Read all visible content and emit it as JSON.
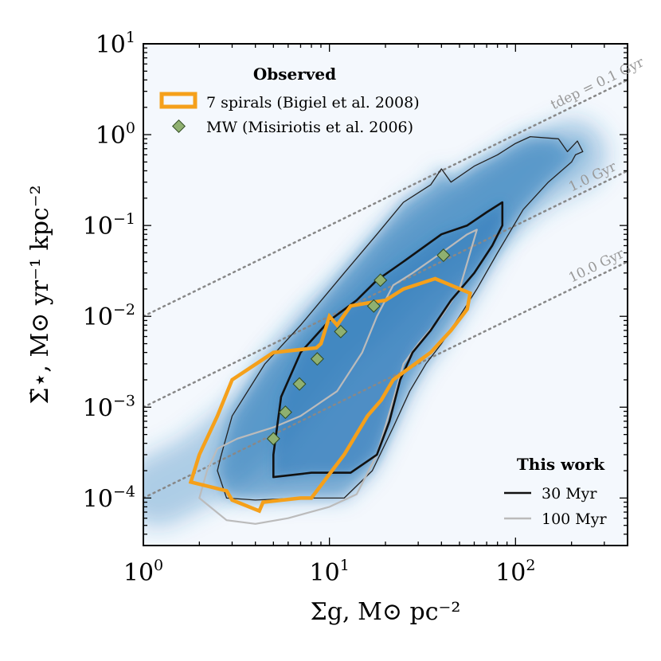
{
  "chart_data": {
    "type": "scatter",
    "xlabel": "Σg, M⊙ pc⁻²",
    "ylabel": "Σ̇⋆, M⊙ yr⁻¹ kpc⁻²",
    "x_scale": "log",
    "y_scale": "log",
    "xlim": [
      1,
      400
    ],
    "ylim": [
      3e-05,
      10
    ],
    "x_ticks": [
      {
        "value": 1,
        "base": "10",
        "exp": "0"
      },
      {
        "value": 10,
        "base": "10",
        "exp": "1"
      },
      {
        "value": 100,
        "base": "10",
        "exp": "2"
      }
    ],
    "y_ticks": [
      {
        "value": 0.0001,
        "base": "10",
        "exp": "−4"
      },
      {
        "value": 0.001,
        "base": "10",
        "exp": "−3"
      },
      {
        "value": 0.01,
        "base": "10",
        "exp": "−2"
      },
      {
        "value": 0.1,
        "base": "10",
        "exp": "−1"
      },
      {
        "value": 1,
        "base": "10",
        "exp": "0"
      },
      {
        "value": 10,
        "base": "10",
        "exp": "1"
      }
    ],
    "depletion_lines": [
      {
        "tdep_gyr": 0.1,
        "label": "tdep = 0.1 Gyr",
        "label_x": 160
      },
      {
        "tdep_gyr": 1.0,
        "label": "1.0 Gyr",
        "label_x": 200
      },
      {
        "tdep_gyr": 10.0,
        "label": "10.0 Gyr",
        "label_x": 200
      }
    ],
    "density_ridge": [
      [
        1.2,
        0.00012
      ],
      [
        2,
        0.0002
      ],
      [
        4,
        0.0006
      ],
      [
        7,
        0.0025
      ],
      [
        10,
        0.006
      ],
      [
        15,
        0.012
      ],
      [
        25,
        0.035
      ],
      [
        40,
        0.07
      ],
      [
        70,
        0.16
      ],
      [
        120,
        0.35
      ],
      [
        200,
        0.6
      ]
    ],
    "this_work_30myr_outer": [
      [
        2.6,
        0.00028
      ],
      [
        2.5,
        0.0002
      ],
      [
        2.8,
        0.0001
      ],
      [
        4,
        9.5e-05
      ],
      [
        7,
        0.0001
      ],
      [
        12,
        0.0001
      ],
      [
        17,
        0.0002
      ],
      [
        22,
        0.0006
      ],
      [
        27,
        0.0015
      ],
      [
        33,
        0.003
      ],
      [
        40,
        0.005
      ],
      [
        50,
        0.01
      ],
      [
        62,
        0.02
      ],
      [
        80,
        0.05
      ],
      [
        110,
        0.15
      ],
      [
        150,
        0.3
      ],
      [
        200,
        0.5
      ],
      [
        210,
        0.6
      ],
      [
        230,
        0.65
      ],
      [
        215,
        0.85
      ],
      [
        190,
        0.65
      ],
      [
        170,
        0.9
      ],
      [
        120,
        0.95
      ],
      [
        100,
        0.8
      ],
      [
        80,
        0.6
      ],
      [
        60,
        0.45
      ],
      [
        45,
        0.3
      ],
      [
        40,
        0.42
      ],
      [
        35,
        0.28
      ],
      [
        25,
        0.18
      ],
      [
        18,
        0.08
      ],
      [
        12,
        0.03
      ],
      [
        7,
        0.008
      ],
      [
        4.5,
        0.003
      ],
      [
        3,
        0.0008
      ],
      [
        2.6,
        0.00028
      ]
    ],
    "this_work_30myr_inner": [
      [
        5,
        0.00017
      ],
      [
        8,
        0.00019
      ],
      [
        13,
        0.00019
      ],
      [
        18,
        0.0003
      ],
      [
        21,
        0.0007
      ],
      [
        24,
        0.002
      ],
      [
        28,
        0.004
      ],
      [
        35,
        0.007
      ],
      [
        45,
        0.015
      ],
      [
        60,
        0.03
      ],
      [
        75,
        0.06
      ],
      [
        85,
        0.1
      ],
      [
        85,
        0.18
      ],
      [
        70,
        0.14
      ],
      [
        55,
        0.1
      ],
      [
        40,
        0.08
      ],
      [
        25,
        0.04
      ],
      [
        18,
        0.025
      ],
      [
        14,
        0.015
      ],
      [
        10,
        0.009
      ],
      [
        7,
        0.004
      ],
      [
        5.5,
        0.0013
      ],
      [
        5,
        0.0003
      ],
      [
        5,
        0.00017
      ]
    ],
    "this_work_100myr": [
      [
        2,
        0.0001
      ],
      [
        2.8,
        5.7e-05
      ],
      [
        4,
        5.2e-05
      ],
      [
        6,
        6e-05
      ],
      [
        10,
        8e-05
      ],
      [
        14,
        0.00011
      ],
      [
        18,
        0.0003
      ],
      [
        22,
        0.0012
      ],
      [
        25,
        0.003
      ],
      [
        30,
        0.005
      ],
      [
        40,
        0.01
      ],
      [
        50,
        0.02
      ],
      [
        62,
        0.09
      ],
      [
        55,
        0.08
      ],
      [
        40,
        0.05
      ],
      [
        28,
        0.03
      ],
      [
        22,
        0.022
      ],
      [
        18,
        0.01
      ],
      [
        15,
        0.004
      ],
      [
        11,
        0.0015
      ],
      [
        7,
        0.0008
      ],
      [
        5,
        0.0006
      ],
      [
        3.2,
        0.00045
      ],
      [
        2.5,
        0.00035
      ],
      [
        2.2,
        0.0002
      ],
      [
        2,
        0.0001
      ]
    ],
    "bigiel_2008": [
      [
        1.8,
        0.00015
      ],
      [
        2.8,
        0.00012
      ],
      [
        3,
        9.5e-05
      ],
      [
        4.2,
        7.2e-05
      ],
      [
        4.4,
        9e-05
      ],
      [
        7,
        0.0001
      ],
      [
        8,
        0.0001
      ],
      [
        12,
        0.0003
      ],
      [
        16,
        0.0008
      ],
      [
        19,
        0.0012
      ],
      [
        22,
        0.002
      ],
      [
        35,
        0.004
      ],
      [
        45,
        0.007
      ],
      [
        55,
        0.012
      ],
      [
        57,
        0.018
      ],
      [
        37,
        0.026
      ],
      [
        25,
        0.02
      ],
      [
        20,
        0.015
      ],
      [
        16,
        0.014
      ],
      [
        13,
        0.013
      ],
      [
        11,
        0.008
      ],
      [
        10,
        0.01
      ],
      [
        9,
        0.005
      ],
      [
        8.5,
        0.0045
      ],
      [
        5,
        0.004
      ],
      [
        3,
        0.002
      ],
      [
        2.5,
        0.0008
      ],
      [
        2,
        0.0003
      ],
      [
        1.8,
        0.00015
      ]
    ],
    "mw_misiriotis_2006": [
      [
        5,
        0.00045
      ],
      [
        5.8,
        0.00088
      ],
      [
        6.9,
        0.0018
      ],
      [
        8.6,
        0.0034
      ],
      [
        11.5,
        0.0068
      ],
      [
        17.3,
        0.013
      ],
      [
        18.8,
        0.025
      ],
      [
        41,
        0.047
      ]
    ],
    "legend_observed": {
      "title": "Observed",
      "entries": [
        "7 spirals (Bigiel et al. 2008)",
        "MW (Misiriotis et al. 2006)"
      ]
    },
    "legend_this_work": {
      "title": "This work",
      "entries": [
        "30 Myr",
        "100 Myr"
      ]
    }
  },
  "colors": {
    "density": "#2e7ab9",
    "density_bg": "#f4f8fd",
    "orange": "#f5a01a",
    "diamond": "#8fb070",
    "inner_contour": "#111111",
    "grey_contour": "#bbbbbb",
    "dotted": "#888888"
  }
}
